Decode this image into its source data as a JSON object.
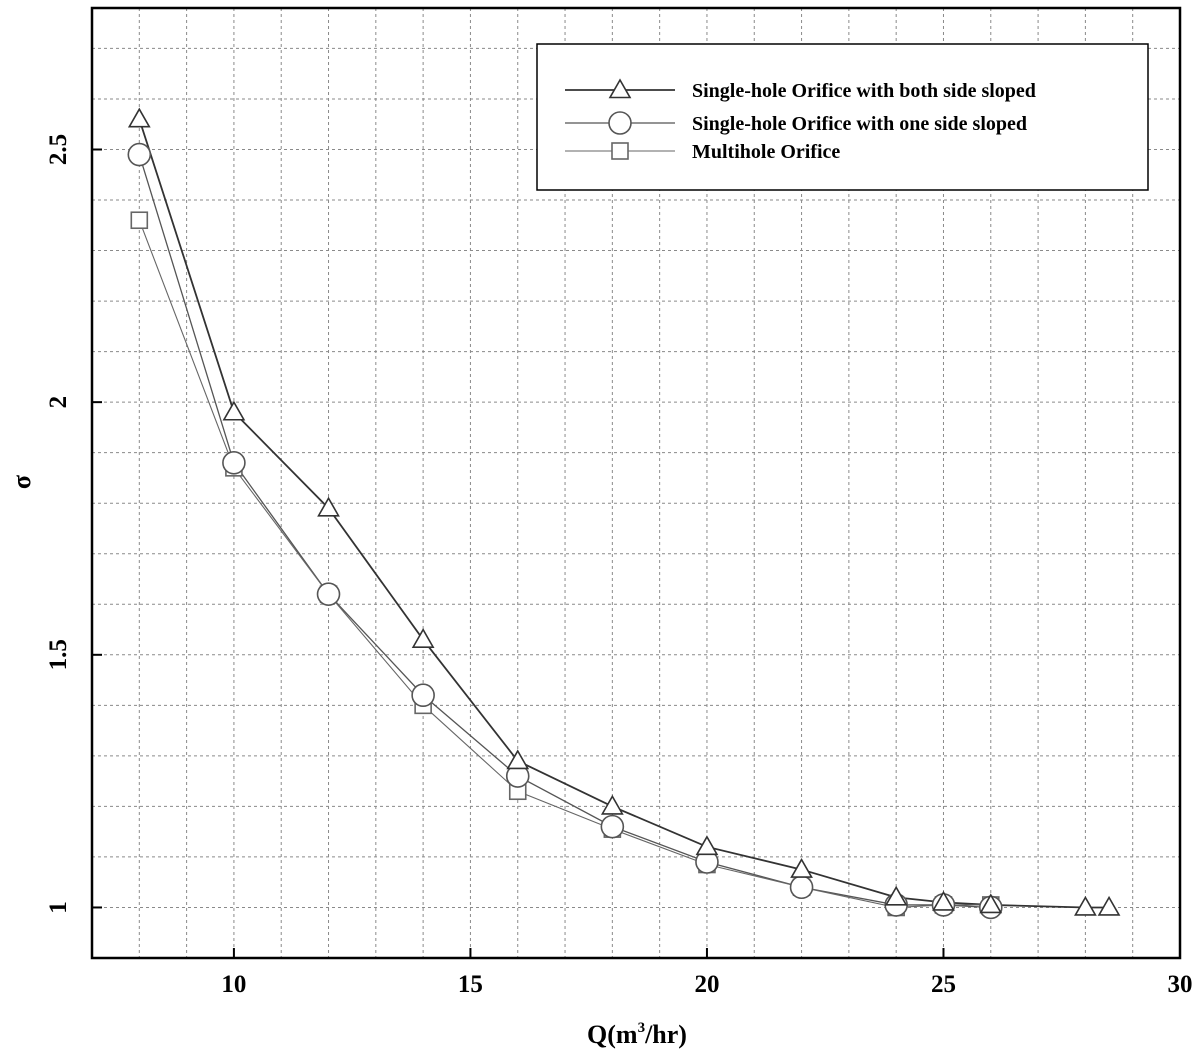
{
  "chart_data": {
    "type": "line",
    "title": "",
    "xlabel": "Q(m",
    "xlabel_sup": "3",
    "xlabel_tail": "/hr)",
    "ylabel": "σ",
    "xlim": [
      7,
      30
    ],
    "ylim": [
      0.9,
      2.78
    ],
    "x_ticks": [
      10,
      15,
      20,
      25,
      30
    ],
    "y_ticks": [
      1,
      1.5,
      2,
      2.5
    ],
    "x_tick_labels": [
      "10",
      "15",
      "20",
      "25",
      "30"
    ],
    "y_tick_labels": [
      "1",
      "1.5",
      "2",
      "2.5"
    ],
    "x_grid_step": 1,
    "y_grid_step": 0.1,
    "grid": true,
    "legend_position": "top-right",
    "series": [
      {
        "name": "Single-hole Orifice with both side sloped",
        "marker": "triangle",
        "color": "#333333",
        "x": [
          8,
          10,
          12,
          14,
          16,
          18,
          20,
          22,
          24,
          25,
          26,
          28,
          28.5
        ],
        "y": [
          2.56,
          1.98,
          1.79,
          1.53,
          1.29,
          1.2,
          1.12,
          1.075,
          1.02,
          1.01,
          1.005,
          1.0,
          1.0
        ]
      },
      {
        "name": "Single-hole Orifice with one side sloped",
        "marker": "circle",
        "color": "#555555",
        "x": [
          8,
          10,
          12,
          14,
          16,
          18,
          20,
          22,
          24,
          25,
          26
        ],
        "y": [
          2.49,
          1.88,
          1.62,
          1.42,
          1.26,
          1.16,
          1.09,
          1.04,
          1.005,
          1.005,
          1.0
        ]
      },
      {
        "name": "Multihole Orifice",
        "marker": "square",
        "color": "#666666",
        "x": [
          8,
          10,
          12,
          14,
          16,
          18,
          20,
          22,
          24,
          25,
          26
        ],
        "y": [
          2.36,
          1.87,
          1.62,
          1.4,
          1.23,
          1.155,
          1.085,
          1.04,
          1.0,
          1.005,
          1.005
        ]
      }
    ]
  }
}
